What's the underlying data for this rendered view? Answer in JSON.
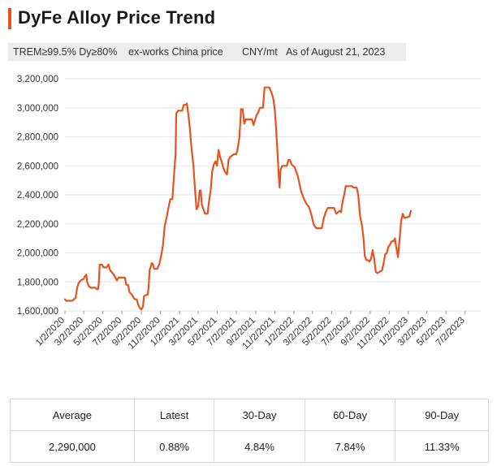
{
  "title": "DyFe Alloy Price Trend",
  "subtitle": {
    "spec": "TREM≥99.5% Dy≥80%",
    "basis": "ex-works China price",
    "unit": "CNY/mt",
    "asof": "As of August 21, 2023"
  },
  "colors": {
    "line": "#e8521f",
    "accent": "#e8521f",
    "grid": "#e6e6e6",
    "subtitle_bg": "#ececec"
  },
  "chart_data": {
    "type": "line",
    "title": "DyFe Alloy Price Trend",
    "xlabel": "",
    "ylabel": "",
    "ylim": [
      1600000,
      3200000
    ],
    "y_ticks": [
      1600000,
      1800000,
      2000000,
      2200000,
      2400000,
      2600000,
      2800000,
      3000000,
      3200000
    ],
    "y_tick_labels": [
      "1,600,000",
      "1,800,000",
      "2,000,000",
      "2,200,000",
      "2,400,000",
      "2,600,000",
      "2,800,000",
      "3,000,000",
      "3,200,000"
    ],
    "x_range": [
      "2020-01-02",
      "2023-08-21"
    ],
    "x_ticks": [
      "2020-01-02",
      "2020-03-02",
      "2020-05-02",
      "2020-07-02",
      "2020-09-02",
      "2020-11-02",
      "2021-01-02",
      "2021-03-02",
      "2021-05-02",
      "2021-07-02",
      "2021-09-02",
      "2021-11-02",
      "2022-01-02",
      "2022-03-02",
      "2022-05-02",
      "2022-07-02",
      "2022-09-02",
      "2022-11-02",
      "2023-01-02",
      "2023-03-02",
      "2023-05-02",
      "2023-07-02"
    ],
    "x_tick_labels": [
      "1/2/2020",
      "3/2/2020",
      "5/2/2020",
      "7/2/2020",
      "9/2/2020",
      "11/2/2020",
      "1/2/2021",
      "3/2/2021",
      "5/2/2021",
      "7/2/2021",
      "9/2/2021",
      "11/2/2021",
      "1/2/2022",
      "3/2/2022",
      "5/2/2022",
      "7/2/2022",
      "9/2/2022",
      "11/2/2022",
      "1/2/2023",
      "3/2/2023",
      "5/2/2023",
      "7/2/2023"
    ],
    "grid": true,
    "legend": "none",
    "series": [
      {
        "color": "#e8521f",
        "points": [
          [
            "2020-01-02",
            1680000
          ],
          [
            "2020-01-06",
            1670000
          ],
          [
            "2020-01-25",
            1670000
          ],
          [
            "2020-02-05",
            1690000
          ],
          [
            "2020-02-10",
            1760000
          ],
          [
            "2020-02-14",
            1790000
          ],
          [
            "2020-02-21",
            1810000
          ],
          [
            "2020-03-01",
            1820000
          ],
          [
            "2020-03-06",
            1840000
          ],
          [
            "2020-03-10",
            1850000
          ],
          [
            "2020-03-13",
            1800000
          ],
          [
            "2020-03-18",
            1770000
          ],
          [
            "2020-03-25",
            1760000
          ],
          [
            "2020-04-08",
            1760000
          ],
          [
            "2020-04-12",
            1750000
          ],
          [
            "2020-04-17",
            1750000
          ],
          [
            "2020-04-19",
            1800000
          ],
          [
            "2020-04-22",
            1920000
          ],
          [
            "2020-04-29",
            1920000
          ],
          [
            "2020-05-04",
            1900000
          ],
          [
            "2020-05-14",
            1900000
          ],
          [
            "2020-05-20",
            1920000
          ],
          [
            "2020-05-25",
            1880000
          ],
          [
            "2020-06-06",
            1850000
          ],
          [
            "2020-06-16",
            1810000
          ],
          [
            "2020-06-21",
            1830000
          ],
          [
            "2020-07-11",
            1830000
          ],
          [
            "2020-07-16",
            1780000
          ],
          [
            "2020-07-21",
            1780000
          ],
          [
            "2020-07-26",
            1730000
          ],
          [
            "2020-08-03",
            1710000
          ],
          [
            "2020-08-08",
            1690000
          ],
          [
            "2020-08-13",
            1680000
          ],
          [
            "2020-08-18",
            1680000
          ],
          [
            "2020-08-23",
            1640000
          ],
          [
            "2020-08-28",
            1620000
          ],
          [
            "2020-09-02",
            1610000
          ],
          [
            "2020-09-07",
            1630000
          ],
          [
            "2020-09-10",
            1700000
          ],
          [
            "2020-09-17",
            1710000
          ],
          [
            "2020-09-22",
            1710000
          ],
          [
            "2020-09-25",
            1760000
          ],
          [
            "2020-09-28",
            1880000
          ],
          [
            "2020-10-01",
            1900000
          ],
          [
            "2020-10-05",
            1930000
          ],
          [
            "2020-10-09",
            1920000
          ],
          [
            "2020-10-13",
            1890000
          ],
          [
            "2020-10-22",
            1890000
          ],
          [
            "2020-10-29",
            1920000
          ],
          [
            "2020-11-05",
            1990000
          ],
          [
            "2020-11-10",
            2060000
          ],
          [
            "2020-11-15",
            2180000
          ],
          [
            "2020-11-22",
            2250000
          ],
          [
            "2020-11-29",
            2330000
          ],
          [
            "2020-12-03",
            2370000
          ],
          [
            "2020-12-10",
            2370000
          ],
          [
            "2020-12-15",
            2540000
          ],
          [
            "2020-12-20",
            2680000
          ],
          [
            "2020-12-22",
            2960000
          ],
          [
            "2020-12-28",
            2980000
          ],
          [
            "2021-01-10",
            2980000
          ],
          [
            "2021-01-15",
            3020000
          ],
          [
            "2021-01-21",
            3020000
          ],
          [
            "2021-01-25",
            3030000
          ],
          [
            "2021-01-29",
            2970000
          ],
          [
            "2021-02-03",
            2870000
          ],
          [
            "2021-02-08",
            2740000
          ],
          [
            "2021-02-15",
            2600000
          ],
          [
            "2021-02-20",
            2440000
          ],
          [
            "2021-02-25",
            2300000
          ],
          [
            "2021-03-02",
            2320000
          ],
          [
            "2021-03-07",
            2430000
          ],
          [
            "2021-03-10",
            2430000
          ],
          [
            "2021-03-14",
            2330000
          ],
          [
            "2021-03-24",
            2270000
          ],
          [
            "2021-04-01",
            2270000
          ],
          [
            "2021-04-06",
            2360000
          ],
          [
            "2021-04-11",
            2430000
          ],
          [
            "2021-04-16",
            2560000
          ],
          [
            "2021-04-21",
            2610000
          ],
          [
            "2021-04-26",
            2630000
          ],
          [
            "2021-05-01",
            2600000
          ],
          [
            "2021-05-06",
            2710000
          ],
          [
            "2021-05-11",
            2660000
          ],
          [
            "2021-05-16",
            2630000
          ],
          [
            "2021-05-21",
            2590000
          ],
          [
            "2021-05-26",
            2560000
          ],
          [
            "2021-06-02",
            2540000
          ],
          [
            "2021-06-07",
            2640000
          ],
          [
            "2021-06-12",
            2660000
          ],
          [
            "2021-06-18",
            2670000
          ],
          [
            "2021-06-25",
            2680000
          ],
          [
            "2021-07-02",
            2680000
          ],
          [
            "2021-07-07",
            2730000
          ],
          [
            "2021-07-12",
            2800000
          ],
          [
            "2021-07-17",
            2990000
          ],
          [
            "2021-07-22",
            2990000
          ],
          [
            "2021-07-27",
            2890000
          ],
          [
            "2021-08-01",
            2920000
          ],
          [
            "2021-08-11",
            2920000
          ],
          [
            "2021-08-21",
            2920000
          ],
          [
            "2021-08-26",
            2880000
          ],
          [
            "2021-08-31",
            2920000
          ],
          [
            "2021-09-05",
            2950000
          ],
          [
            "2021-09-10",
            2970000
          ],
          [
            "2021-09-15",
            3000000
          ],
          [
            "2021-09-25",
            3000000
          ],
          [
            "2021-09-30",
            3140000
          ],
          [
            "2021-10-15",
            3140000
          ],
          [
            "2021-10-19",
            3120000
          ],
          [
            "2021-10-23",
            3100000
          ],
          [
            "2021-10-28",
            3060000
          ],
          [
            "2021-11-02",
            2980000
          ],
          [
            "2021-11-06",
            2850000
          ],
          [
            "2021-11-10",
            2700000
          ],
          [
            "2021-11-15",
            2510000
          ],
          [
            "2021-11-17",
            2450000
          ],
          [
            "2021-11-20",
            2570000
          ],
          [
            "2021-11-25",
            2600000
          ],
          [
            "2021-12-10",
            2600000
          ],
          [
            "2021-12-15",
            2640000
          ],
          [
            "2021-12-20",
            2640000
          ],
          [
            "2021-12-25",
            2610000
          ],
          [
            "2022-01-04",
            2590000
          ],
          [
            "2022-01-09",
            2560000
          ],
          [
            "2022-01-14",
            2530000
          ],
          [
            "2022-01-19",
            2480000
          ],
          [
            "2022-01-24",
            2430000
          ],
          [
            "2022-02-03",
            2370000
          ],
          [
            "2022-02-13",
            2330000
          ],
          [
            "2022-02-18",
            2320000
          ],
          [
            "2022-02-23",
            2290000
          ],
          [
            "2022-02-28",
            2250000
          ],
          [
            "2022-03-05",
            2200000
          ],
          [
            "2022-03-10",
            2180000
          ],
          [
            "2022-03-15",
            2170000
          ],
          [
            "2022-04-01",
            2170000
          ],
          [
            "2022-04-06",
            2230000
          ],
          [
            "2022-04-13",
            2280000
          ],
          [
            "2022-04-20",
            2310000
          ],
          [
            "2022-04-30",
            2310000
          ],
          [
            "2022-05-10",
            2310000
          ],
          [
            "2022-05-17",
            2270000
          ],
          [
            "2022-05-22",
            2280000
          ],
          [
            "2022-05-27",
            2290000
          ],
          [
            "2022-06-01",
            2280000
          ],
          [
            "2022-06-06",
            2350000
          ],
          [
            "2022-06-11",
            2400000
          ],
          [
            "2022-06-16",
            2460000
          ],
          [
            "2022-06-21",
            2460000
          ],
          [
            "2022-07-06",
            2460000
          ],
          [
            "2022-07-11",
            2450000
          ],
          [
            "2022-07-21",
            2450000
          ],
          [
            "2022-07-26",
            2400000
          ],
          [
            "2022-08-01",
            2250000
          ],
          [
            "2022-08-06",
            2200000
          ],
          [
            "2022-08-11",
            2120000
          ],
          [
            "2022-08-16",
            1980000
          ],
          [
            "2022-08-21",
            1950000
          ],
          [
            "2022-08-26",
            1950000
          ],
          [
            "2022-08-31",
            1940000
          ],
          [
            "2022-09-05",
            1960000
          ],
          [
            "2022-09-10",
            2020000
          ],
          [
            "2022-09-15",
            1960000
          ],
          [
            "2022-09-20",
            1870000
          ],
          [
            "2022-09-25",
            1860000
          ],
          [
            "2022-10-10",
            1880000
          ],
          [
            "2022-10-15",
            1930000
          ],
          [
            "2022-10-20",
            1990000
          ],
          [
            "2022-10-25",
            2000000
          ],
          [
            "2022-10-30",
            2040000
          ],
          [
            "2022-11-05",
            2060000
          ],
          [
            "2022-11-10",
            2080000
          ],
          [
            "2022-11-15",
            2080000
          ],
          [
            "2022-11-20",
            2100000
          ],
          [
            "2022-11-25",
            2030000
          ],
          [
            "2022-11-30",
            1970000
          ],
          [
            "2022-12-05",
            2100000
          ],
          [
            "2022-12-10",
            2220000
          ],
          [
            "2022-12-15",
            2270000
          ],
          [
            "2022-12-20",
            2240000
          ],
          [
            "2023-01-05",
            2250000
          ],
          [
            "2023-01-10",
            2290000
          ]
        ]
      }
    ]
  },
  "stats": {
    "headers": [
      "Average",
      "Latest",
      "30-Day",
      "60-Day",
      "90-Day"
    ],
    "values": [
      "2,290,000",
      "0.88%",
      "4.84%",
      "7.84%",
      "11.33%"
    ]
  }
}
